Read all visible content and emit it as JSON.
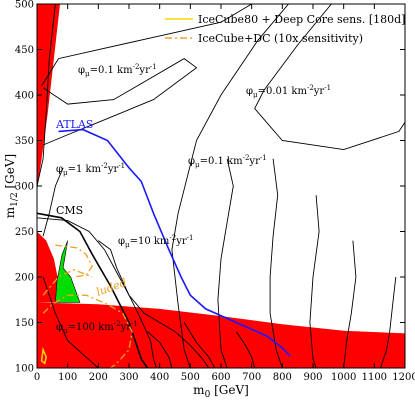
{
  "chart_data": {
    "type": "line",
    "xlabel_main": "m",
    "xlabel_sub": "0",
    "xlabel_unit": " [GeV]",
    "ylabel_main": "m",
    "ylabel_sub": "1/2",
    "ylabel_unit": " [GeV]",
    "xlim": [
      0,
      1200
    ],
    "ylim": [
      100,
      500
    ],
    "x_ticks": [
      "0",
      "100",
      "200",
      "300",
      "400",
      "500",
      "600",
      "700",
      "800",
      "900",
      "1000",
      "1100",
      "1200"
    ],
    "y_ticks": [
      "100",
      "150",
      "200",
      "250",
      "300",
      "350",
      "400",
      "450",
      "500"
    ],
    "x_tick_values": [
      0,
      100,
      200,
      300,
      400,
      500,
      600,
      700,
      800,
      900,
      1000,
      1100,
      1200
    ],
    "y_tick_values": [
      100,
      150,
      200,
      250,
      300,
      350,
      400,
      450,
      500
    ],
    "legend": [
      {
        "label": "IceCube80 + Deep Core sens. [180d]",
        "color": "#f5d800",
        "dash": "solid"
      },
      {
        "label": "IceCube+DC (10x sensitivity)",
        "color": "#f0a020",
        "dash": "dashdot"
      }
    ],
    "colors": {
      "excluded_region": "#ff0000",
      "allowed_band": "#00dd00",
      "atlas": "#1a1aff",
      "cms": "#000000",
      "contours": "#000000",
      "sens_solid": "#f5d800",
      "sens_dashed": "#f0a020"
    },
    "region_labels": {
      "excluded_partial": "luded"
    },
    "experiment_labels": {
      "atlas": "ATLAS",
      "cms": "CMS"
    },
    "flux_labels": [
      {
        "pre": "φ",
        "sub": "μ",
        "mid": "=0.1 km",
        "exp1": "-2",
        "mid2": "yr",
        "exp2": "-1"
      },
      {
        "pre": "φ",
        "sub": "μ",
        "mid": "=0.01 km",
        "exp1": "-2",
        "mid2": "yr",
        "exp2": "-1"
      },
      {
        "pre": "φ",
        "sub": "μ",
        "mid": "=0.1 km",
        "exp1": "-2",
        "mid2": "yr",
        "exp2": "-1"
      },
      {
        "pre": "φ",
        "sub": "μ",
        "mid": "=1 km",
        "exp1": "-2",
        "mid2": "yr",
        "exp2": "-1"
      },
      {
        "pre": "φ",
        "sub": "μ",
        "mid": "=10 km",
        "exp1": "-2",
        "mid2": "yr",
        "exp2": "-1"
      },
      {
        "pre": "φ",
        "sub": "μ",
        "mid": "=100 km",
        "exp1": "-2",
        "mid2": "yr",
        "exp2": "-1"
      }
    ],
    "excluded_bottom": [
      [
        0,
        172
      ],
      [
        200,
        170
      ],
      [
        400,
        165
      ],
      [
        600,
        157
      ],
      [
        800,
        148
      ],
      [
        1000,
        141
      ],
      [
        1200,
        138
      ],
      [
        1200,
        100
      ],
      [
        0,
        100
      ]
    ],
    "excluded_left_top": [
      [
        0,
        295
      ],
      [
        15,
        330
      ],
      [
        35,
        380
      ],
      [
        55,
        440
      ],
      [
        75,
        500
      ],
      [
        0,
        500
      ]
    ],
    "excluded_left_low": [
      [
        0,
        250
      ],
      [
        30,
        240
      ],
      [
        55,
        220
      ],
      [
        70,
        195
      ],
      [
        80,
        172
      ],
      [
        0,
        172
      ]
    ],
    "allowed_band": [
      [
        60,
        172
      ],
      [
        65,
        195
      ],
      [
        82,
        225
      ],
      [
        100,
        240
      ],
      [
        85,
        210
      ],
      [
        110,
        200
      ],
      [
        140,
        172
      ]
    ],
    "atlas": [
      [
        70,
        360
      ],
      [
        150,
        362
      ],
      [
        230,
        350
      ],
      [
        300,
        320
      ],
      [
        340,
        305
      ],
      [
        380,
        270
      ],
      [
        430,
        230
      ],
      [
        470,
        200
      ],
      [
        500,
        180
      ],
      [
        550,
        165
      ],
      [
        650,
        150
      ],
      [
        750,
        135
      ],
      [
        800,
        122
      ],
      [
        825,
        113
      ]
    ],
    "cms": [
      [
        0,
        270
      ],
      [
        80,
        265
      ],
      [
        140,
        250
      ],
      [
        180,
        225
      ],
      [
        240,
        190
      ],
      [
        300,
        150
      ],
      [
        340,
        110
      ],
      [
        360,
        100
      ]
    ],
    "contours": [
      [
        [
          60,
          500
        ],
        [
          40,
          440
        ],
        [
          30,
          380
        ],
        [
          20,
          330
        ],
        [
          0,
          300
        ]
      ],
      [
        [
          15,
          410
        ],
        [
          70,
          440
        ],
        [
          400,
          465
        ],
        [
          600,
          480
        ],
        [
          700,
          500
        ]
      ],
      [
        [
          20,
          408
        ],
        [
          55,
          400
        ],
        [
          100,
          390
        ],
        [
          250,
          395
        ],
        [
          480,
          440
        ],
        [
          520,
          430
        ],
        [
          380,
          395
        ],
        [
          200,
          370
        ],
        [
          90,
          355
        ],
        [
          20,
          345
        ]
      ],
      [
        [
          960,
          500
        ],
        [
          850,
          455
        ],
        [
          740,
          405
        ],
        [
          710,
          385
        ],
        [
          800,
          350
        ],
        [
          1000,
          340
        ],
        [
          1180,
          360
        ],
        [
          1200,
          370
        ]
      ],
      [
        [
          820,
          500
        ],
        [
          720,
          460
        ],
        [
          600,
          400
        ],
        [
          520,
          350
        ],
        [
          460,
          270
        ],
        [
          440,
          230
        ],
        [
          460,
          170
        ],
        [
          480,
          120
        ],
        [
          500,
          100
        ]
      ],
      [
        [
          85,
          320
        ],
        [
          60,
          300
        ],
        [
          40,
          270
        ],
        [
          20,
          245
        ]
      ],
      [
        [
          620,
          330
        ],
        [
          640,
          300
        ],
        [
          620,
          260
        ],
        [
          600,
          220
        ],
        [
          590,
          175
        ],
        [
          600,
          120
        ],
        [
          620,
          100
        ]
      ],
      [
        [
          770,
          330
        ],
        [
          785,
          290
        ],
        [
          770,
          245
        ],
        [
          760,
          200
        ],
        [
          760,
          160
        ],
        [
          780,
          120
        ],
        [
          800,
          100
        ]
      ],
      [
        [
          910,
          290
        ],
        [
          920,
          250
        ],
        [
          900,
          200
        ],
        [
          890,
          150
        ],
        [
          900,
          110
        ],
        [
          910,
          100
        ]
      ],
      [
        [
          1030,
          240
        ],
        [
          1040,
          200
        ],
        [
          1025,
          160
        ],
        [
          1010,
          130
        ],
        [
          1000,
          100
        ]
      ],
      [
        [
          1170,
          200
        ],
        [
          1160,
          170
        ],
        [
          1150,
          140
        ],
        [
          1140,
          120
        ],
        [
          1120,
          100
        ]
      ],
      [
        [
          0,
          265
        ],
        [
          100,
          262
        ],
        [
          170,
          250
        ],
        [
          220,
          230
        ],
        [
          260,
          205
        ],
        [
          300,
          180
        ],
        [
          350,
          160
        ],
        [
          400,
          150
        ],
        [
          450,
          140
        ],
        [
          500,
          125
        ],
        [
          540,
          110
        ],
        [
          560,
          100
        ]
      ],
      [
        [
          200,
          240
        ],
        [
          240,
          230
        ],
        [
          260,
          210
        ],
        [
          300,
          180
        ],
        [
          330,
          160
        ],
        [
          370,
          130
        ],
        [
          380,
          110
        ],
        [
          390,
          100
        ]
      ],
      [
        [
          20,
          200
        ],
        [
          60,
          160
        ],
        [
          100,
          130
        ],
        [
          150,
          115
        ],
        [
          200,
          100
        ]
      ],
      [
        [
          480,
          150
        ],
        [
          520,
          128
        ],
        [
          560,
          112
        ],
        [
          580,
          100
        ]
      ],
      [
        [
          360,
          140
        ],
        [
          400,
          128
        ],
        [
          430,
          112
        ],
        [
          440,
          100
        ]
      ],
      [
        [
          650,
          140
        ],
        [
          680,
          125
        ],
        [
          700,
          112
        ],
        [
          710,
          100
        ]
      ]
    ],
    "sens_dashed": [
      [
        [
          60,
          235
        ],
        [
          130,
          232
        ],
        [
          160,
          225
        ],
        [
          180,
          212
        ],
        [
          160,
          202
        ],
        [
          120,
          200
        ]
      ],
      [
        [
          20,
          160
        ],
        [
          50,
          170
        ],
        [
          100,
          180
        ],
        [
          160,
          180
        ],
        [
          230,
          170
        ],
        [
          280,
          160
        ],
        [
          310,
          140
        ],
        [
          300,
          120
        ],
        [
          260,
          105
        ],
        [
          240,
          100
        ]
      ],
      [
        [
          20,
          180
        ],
        [
          70,
          200
        ],
        [
          120,
          208
        ],
        [
          180,
          200
        ]
      ]
    ],
    "sens_solid": [
      [
        [
          20,
          120
        ],
        [
          30,
          112
        ],
        [
          25,
          105
        ],
        [
          15,
          108
        ]
      ]
    ]
  }
}
